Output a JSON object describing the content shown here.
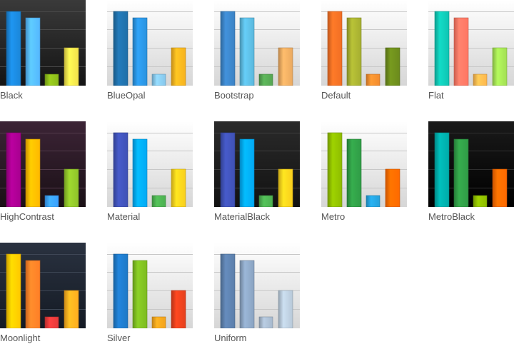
{
  "gallery": {
    "themes": [
      {
        "name": "Black",
        "bg": [
          "#3a3a3a",
          "#141414"
        ],
        "grid": "#4a4a4a",
        "colors": [
          "#1b86d8",
          "#55b7ff",
          "#8bba1a",
          "#f2e14b"
        ]
      },
      {
        "name": "BlueOpal",
        "bg": [
          "#ffffff",
          "#d6d6d6"
        ],
        "grid": "#c7c7c7",
        "colors": [
          "#1f6fa8",
          "#2a92de",
          "#86c5ea",
          "#f7b21f"
        ]
      },
      {
        "name": "Bootstrap",
        "bg": [
          "#ffffff",
          "#d6d6d6"
        ],
        "grid": "#c7c7c7",
        "colors": [
          "#3b82c4",
          "#5bb8dd",
          "#55a552",
          "#eaa960"
        ]
      },
      {
        "name": "Default",
        "bg": [
          "#ffffff",
          "#d6d6d6"
        ],
        "grid": "#c7c7c7",
        "colors": [
          "#f16e24",
          "#a5ae31",
          "#f38b2e",
          "#6b8a1c"
        ]
      },
      {
        "name": "Flat",
        "bg": [
          "#ffffff",
          "#d6d6d6"
        ],
        "grid": "#c7c7c7",
        "colors": [
          "#10c4b2",
          "#ff7663",
          "#ffb74e",
          "#a2df53"
        ]
      },
      {
        "name": "HighContrast",
        "bg": [
          "#3c2436",
          "#1a1016"
        ],
        "grid": "#513a4a",
        "colors": [
          "#a7008f",
          "#ffb800",
          "#3aa0ff",
          "#8fc32a"
        ]
      },
      {
        "name": "Material",
        "bg": [
          "#ffffff",
          "#d6d6d6"
        ],
        "grid": "#c7c7c7",
        "colors": [
          "#3f51b5",
          "#03a9f4",
          "#4caf50",
          "#f9ce1d"
        ]
      },
      {
        "name": "MaterialBlack",
        "bg": [
          "#2a2a2a",
          "#121212"
        ],
        "grid": "#3c3c3c",
        "colors": [
          "#3f51b5",
          "#03a9f4",
          "#4caf50",
          "#f9ce1d"
        ]
      },
      {
        "name": "Metro",
        "bg": [
          "#ffffff",
          "#d6d6d6"
        ],
        "grid": "#c7c7c7",
        "colors": [
          "#8ebc00",
          "#309b46",
          "#25a0da",
          "#ff6900"
        ]
      },
      {
        "name": "MetroBlack",
        "bg": [
          "#1a1a1a",
          "#000000"
        ],
        "grid": "#2e2e2e",
        "colors": [
          "#00aba9",
          "#309b46",
          "#8ebc00",
          "#ff6900"
        ]
      },
      {
        "name": "Moonlight",
        "bg": [
          "#2a3240",
          "#141a24"
        ],
        "grid": "#3e4756",
        "colors": [
          "#ffc700",
          "#ff7f27",
          "#e63a3a",
          "#ffad1f"
        ]
      },
      {
        "name": "Silver",
        "bg": [
          "#ffffff",
          "#d6d6d6"
        ],
        "grid": "#c7c7c7",
        "colors": [
          "#1e78c6",
          "#7dbb21",
          "#f3a21d",
          "#e4401d"
        ]
      },
      {
        "name": "Uniform",
        "bg": [
          "#ffffff",
          "#d6d6d6"
        ],
        "grid": "#c7c7c7",
        "colors": [
          "#5b7eaa",
          "#8aa3c1",
          "#a6b8cc",
          "#b7c8d8"
        ]
      }
    ]
  }
}
